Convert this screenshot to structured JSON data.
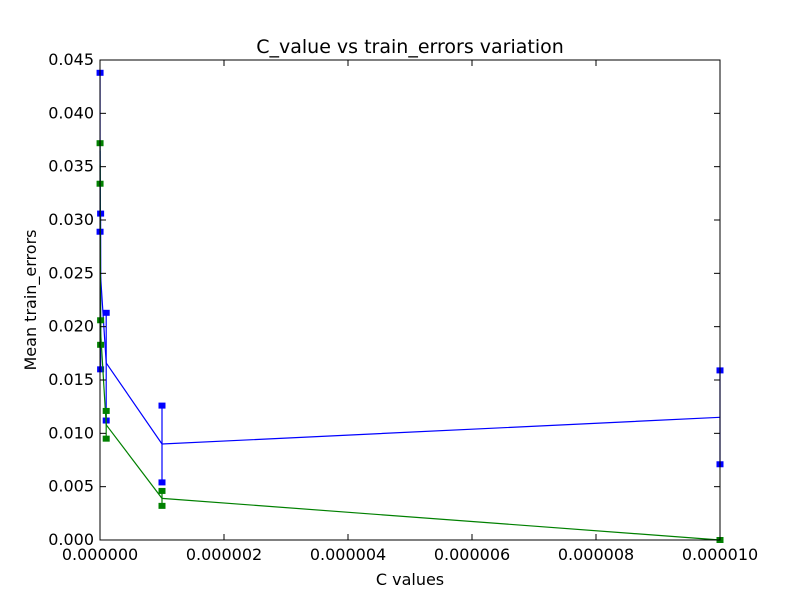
{
  "chart_data": {
    "type": "line",
    "title": "C_value vs train_errors variation",
    "xlabel": "C values",
    "ylabel": "Mean train_errors",
    "xlim": [
      0,
      1e-05
    ],
    "ylim": [
      0,
      0.045
    ],
    "x_ticks": [
      "0.000000",
      "0.000002",
      "0.000004",
      "0.000006",
      "0.000008",
      "0.000010"
    ],
    "y_ticks": [
      "0.000",
      "0.005",
      "0.010",
      "0.015",
      "0.020",
      "0.025",
      "0.030",
      "0.035",
      "0.040",
      "0.045"
    ],
    "grid": false,
    "legend": null,
    "series": [
      {
        "color": "#0000ff",
        "x": [
          1e-09,
          1e-08,
          1e-07,
          1e-06,
          1e-05
        ],
        "y": [
          0.0365,
          0.0247,
          0.0166,
          0.009,
          0.0115
        ],
        "err_low": [
          0.0289,
          0.016,
          0.0112,
          0.0054,
          0.0071
        ],
        "err_high": [
          0.0438,
          0.0306,
          0.0213,
          0.0126,
          0.0159
        ]
      },
      {
        "color": "#008000",
        "x": [
          1e-09,
          1e-08,
          1e-07,
          1e-06,
          1e-05
        ],
        "y": [
          0.0352,
          0.0195,
          0.0108,
          0.0039,
          0.0
        ],
        "err_low": [
          0.0334,
          0.0183,
          0.0095,
          0.0032,
          0.0
        ],
        "err_high": [
          0.0372,
          0.0206,
          0.0121,
          0.0046,
          0.0
        ]
      }
    ]
  }
}
